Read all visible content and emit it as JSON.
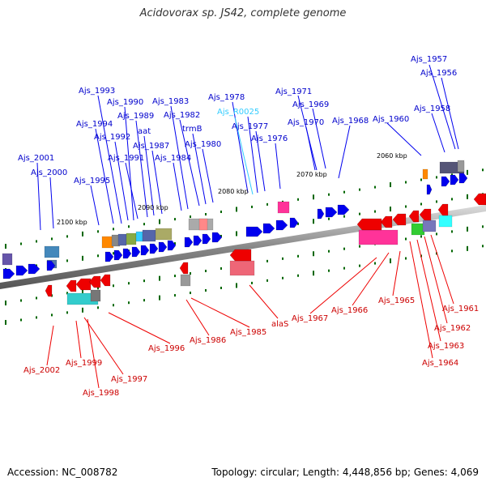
{
  "header": {
    "title": "Acidovorax sp. JS42, complete genome"
  },
  "footer": {
    "accession": "Accession: NC_008782",
    "stats": "Topology: circular; Length: 4,448,856 bp; Genes: 4,069"
  },
  "colors": {
    "forward": "#0000ee",
    "reverse": "#ee0000",
    "rna": "#33ccff",
    "backbone": "#888888",
    "tick": "#006600"
  },
  "scale_labels": [
    "2060 kbp",
    "2070 kbp",
    "2080 kbp",
    "2090 kbp",
    "2100 kbp"
  ],
  "forward_labels": [
    "Ajs_1957",
    "Ajs_1956",
    "Ajs_1958",
    "Ajs_1960",
    "Ajs_1971",
    "Ajs_1969",
    "Ajs_1970",
    "Ajs_1968",
    "Ajs_1978",
    "Ajs_R0025",
    "Ajs_1977",
    "Ajs_1976",
    "Ajs_1993",
    "Ajs_1990",
    "Ajs_1989",
    "Ajs_1983",
    "Ajs_1982",
    "Ajs_1994",
    "Ajs_1992",
    "aat",
    "Ajs_1987",
    "trmB",
    "Ajs_1980",
    "Ajs_1991",
    "Ajs_1984",
    "Ajs_2001",
    "Ajs_2000",
    "Ajs_1995"
  ],
  "reverse_labels": [
    "Ajs_1961",
    "Ajs_1962",
    "Ajs_1963",
    "Ajs_1964",
    "Ajs_1965",
    "Ajs_1966",
    "Ajs_1967",
    "alaS",
    "Ajs_1985",
    "Ajs_1986",
    "Ajs_1996",
    "Ajs_1997",
    "Ajs_1998",
    "Ajs_1999",
    "Ajs_2002"
  ]
}
